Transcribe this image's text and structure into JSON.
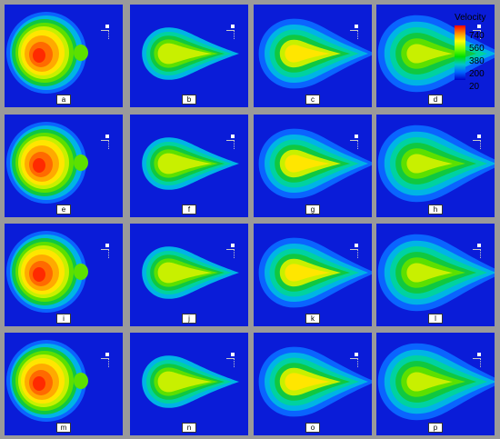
{
  "legend": {
    "title": "Velocity",
    "ticks": [
      "740",
      "560",
      "380",
      "200",
      "20"
    ]
  },
  "panels": [
    {
      "label": "a",
      "stage": 0
    },
    {
      "label": "b",
      "stage": 1
    },
    {
      "label": "c",
      "stage": 2
    },
    {
      "label": "d",
      "stage": 3
    },
    {
      "label": "e",
      "stage": 0
    },
    {
      "label": "f",
      "stage": 1
    },
    {
      "label": "g",
      "stage": 2
    },
    {
      "label": "h",
      "stage": 3
    },
    {
      "label": "i",
      "stage": 0
    },
    {
      "label": "j",
      "stage": 1
    },
    {
      "label": "k",
      "stage": 2
    },
    {
      "label": "l",
      "stage": 3
    },
    {
      "label": "m",
      "stage": 0
    },
    {
      "label": "n",
      "stage": 1
    },
    {
      "label": "o",
      "stage": 2
    },
    {
      "label": "p",
      "stage": 3
    }
  ],
  "colors": {
    "background": "#0a1cd8",
    "frame": "#9a9a9a",
    "palette": [
      "#0a1cd8",
      "#0a64ff",
      "#00b4e6",
      "#00d2a0",
      "#10c840",
      "#5ce000",
      "#c8f000",
      "#ffe600",
      "#ffaa00",
      "#ff6a00",
      "#ff2a00"
    ]
  }
}
